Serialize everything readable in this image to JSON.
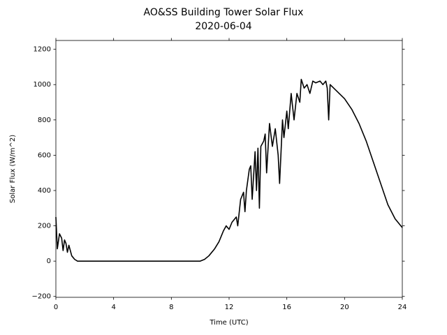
{
  "chart_data": {
    "type": "line",
    "title": "AO&SS Building Tower Solar Flux",
    "subtitle": "2020-06-04",
    "x_label": "Time (UTC)",
    "y_label": "Solar Flux (W/m^2)",
    "color": "#000000",
    "x": [
      0,
      0.1,
      0.25,
      0.4,
      0.5,
      0.6,
      0.7,
      0.8,
      0.9,
      1.1,
      1.3,
      1.5,
      4,
      8,
      10,
      10.3,
      10.6,
      11,
      11.3,
      11.6,
      11.8,
      12,
      12.2,
      12.5,
      12.6,
      12.8,
      13,
      13.1,
      13.2,
      13.4,
      13.5,
      13.6,
      13.8,
      13.9,
      14,
      14.1,
      14.2,
      14.4,
      14.5,
      14.6,
      14.8,
      15,
      15.2,
      15.4,
      15.5,
      15.7,
      15.8,
      16,
      16.1,
      16.3,
      16.5,
      16.7,
      16.9,
      17,
      17.2,
      17.4,
      17.6,
      17.8,
      18,
      18.3,
      18.5,
      18.7,
      18.8,
      18.9,
      19,
      19.5,
      20,
      20.5,
      21,
      21.5,
      22,
      22.5,
      23,
      23.5,
      24
    ],
    "values": [
      250,
      70,
      155,
      130,
      60,
      120,
      100,
      50,
      90,
      30,
      10,
      0,
      0,
      0,
      0,
      10,
      30,
      70,
      110,
      170,
      200,
      180,
      220,
      250,
      200,
      350,
      390,
      280,
      400,
      520,
      540,
      350,
      620,
      400,
      640,
      300,
      650,
      680,
      720,
      500,
      780,
      650,
      750,
      600,
      440,
      800,
      700,
      850,
      750,
      950,
      800,
      950,
      900,
      1030,
      980,
      1000,
      950,
      1020,
      1010,
      1020,
      1000,
      1020,
      980,
      800,
      1000,
      960,
      920,
      860,
      780,
      680,
      560,
      440,
      320,
      240,
      190
    ],
    "xlim": [
      0,
      24
    ],
    "xticks": [
      0,
      4,
      8,
      12,
      16,
      20,
      24
    ],
    "ylim": [
      -205,
      1250
    ],
    "yticks": [
      {
        "value": -200,
        "label": "−200"
      },
      0,
      200,
      400,
      600,
      800,
      1000,
      1200
    ]
  }
}
